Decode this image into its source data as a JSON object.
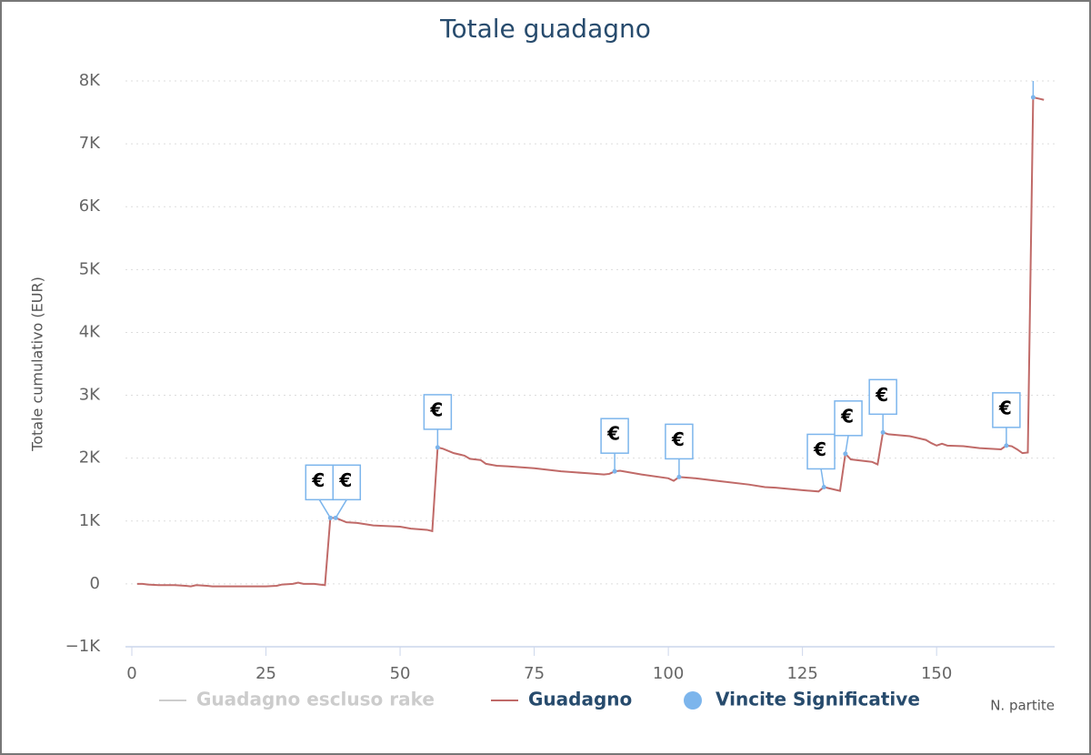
{
  "chart_data": {
    "type": "line",
    "title": "Totale guadagno",
    "y_axis_label": "Totale cumulativo (EUR)",
    "x_axis_label": "N. partite",
    "xlim": [
      0,
      172
    ],
    "ylim": [
      -1000,
      8000
    ],
    "xticks": [
      0,
      25,
      50,
      75,
      100,
      125,
      150
    ],
    "yticks": [
      {
        "value": -1000,
        "label": "−1K"
      },
      0,
      {
        "value": 1000,
        "label": "1K"
      },
      {
        "value": 2000,
        "label": "2K"
      },
      {
        "value": 3000,
        "label": "3K"
      },
      {
        "value": 4000,
        "label": "4K"
      },
      {
        "value": 5000,
        "label": "5K"
      },
      {
        "value": 6000,
        "label": "6K"
      },
      {
        "value": 7000,
        "label": "7K"
      },
      {
        "value": 8000,
        "label": "8K"
      }
    ],
    "grid": true,
    "flag_text": "€",
    "series": [
      {
        "name": "Guadagno escluso rake",
        "color": "#cccccc",
        "visible": false
      },
      {
        "name": "Guadagno",
        "color": "#c06a68",
        "x": [
          1,
          2,
          3,
          5,
          8,
          10,
          11,
          12,
          14,
          15,
          20,
          25,
          27,
          28,
          30,
          31,
          32,
          34,
          35,
          36,
          37,
          38,
          40,
          42,
          45,
          50,
          52,
          55,
          56,
          57,
          58,
          60,
          62,
          63,
          65,
          66,
          68,
          70,
          75,
          80,
          85,
          88,
          89,
          90,
          91,
          95,
          100,
          101,
          102,
          105,
          110,
          115,
          118,
          120,
          125,
          128,
          129,
          130,
          132,
          133,
          134,
          137,
          138,
          139,
          140,
          141,
          145,
          148,
          149,
          150,
          151,
          152,
          155,
          158,
          162,
          163,
          164,
          165,
          166,
          167,
          168,
          170
        ],
        "values": [
          0,
          0,
          -10,
          -20,
          -20,
          -30,
          -40,
          -20,
          -30,
          -40,
          -40,
          -40,
          -30,
          -10,
          0,
          20,
          0,
          0,
          -10,
          -20,
          1050,
          1050,
          980,
          970,
          930,
          910,
          880,
          860,
          840,
          2170,
          2150,
          2080,
          2040,
          1990,
          1970,
          1910,
          1880,
          1870,
          1840,
          1790,
          1760,
          1740,
          1750,
          1790,
          1800,
          1740,
          1680,
          1640,
          1700,
          1680,
          1630,
          1580,
          1540,
          1530,
          1490,
          1470,
          1540,
          1520,
          1480,
          2070,
          1980,
          1950,
          1940,
          1900,
          2410,
          2380,
          2350,
          2290,
          2240,
          2200,
          2230,
          2200,
          2190,
          2160,
          2140,
          2200,
          2190,
          2140,
          2080,
          2090,
          7740,
          7700
        ]
      },
      {
        "name": "Vincite Significative",
        "color": "#7cb5ec",
        "type": "flags",
        "x": [
          37,
          38,
          57,
          90,
          102,
          129,
          133,
          140,
          163,
          168
        ],
        "values": [
          1050,
          1050,
          2170,
          1790,
          1700,
          1540,
          2070,
          2410,
          2200,
          7740
        ]
      }
    ]
  }
}
